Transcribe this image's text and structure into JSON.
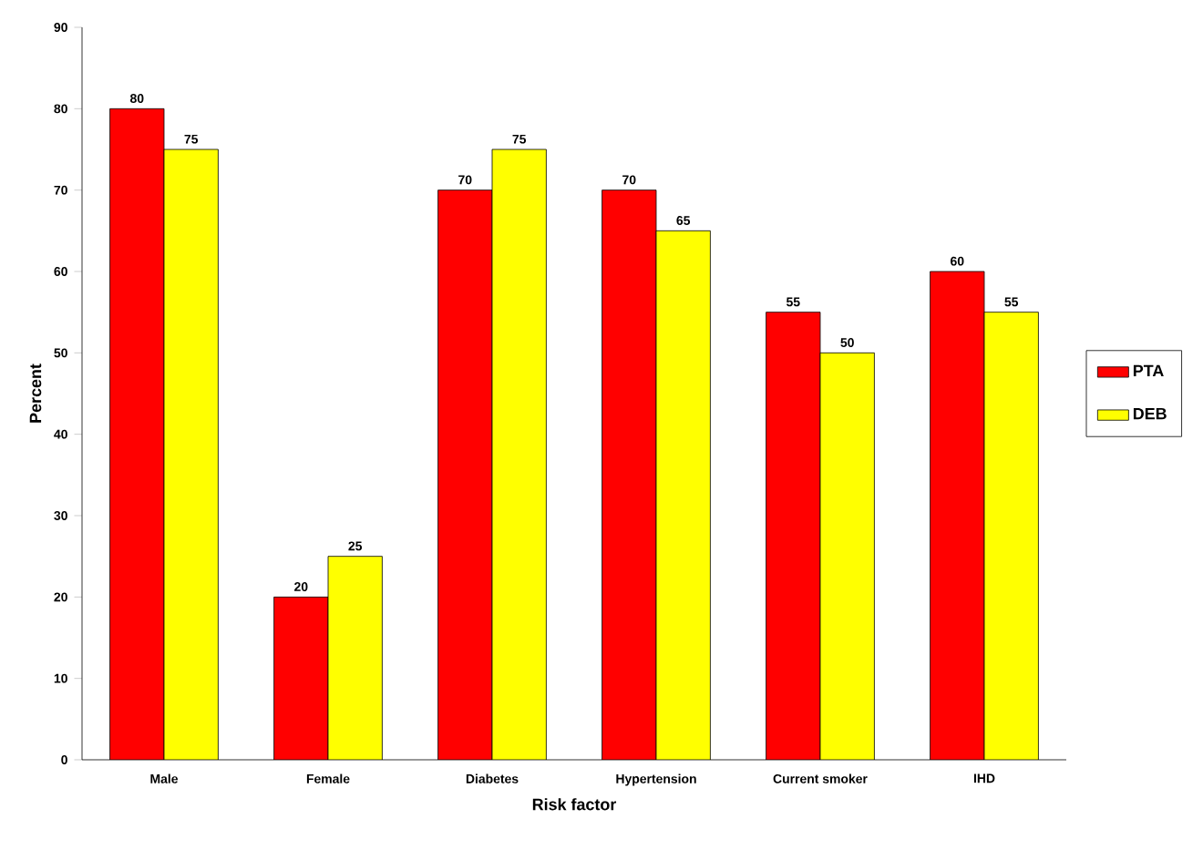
{
  "chart_data": {
    "type": "bar",
    "xlabel": "Risk factor",
    "ylabel": "Percent",
    "categories": [
      "Male",
      "Female",
      "Diabetes",
      "Hypertension",
      "Current smoker",
      "IHD"
    ],
    "series": [
      {
        "name": "PTA",
        "color": "#ff0000",
        "values": [
          80,
          20,
          70,
          70,
          55,
          60
        ]
      },
      {
        "name": "DEB",
        "color": "#ffff00",
        "values": [
          75,
          25,
          75,
          65,
          50,
          55
        ]
      }
    ],
    "ylim": [
      0,
      90
    ],
    "yticks": [
      0,
      10,
      20,
      30,
      40,
      50,
      60,
      70,
      80,
      90
    ],
    "grid": false,
    "legend": "right",
    "data_labels": true
  }
}
